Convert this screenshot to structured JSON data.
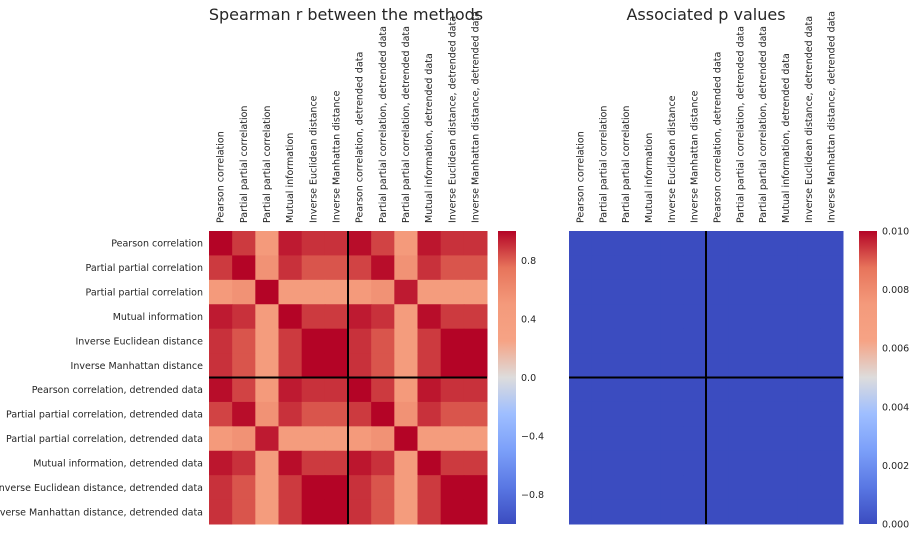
{
  "chart_data": [
    {
      "type": "heatmap",
      "title": "Spearman r between the methods",
      "x_labels": [
        "Pearson correlation",
        "Partial partial correlation",
        "Partial partial correlation",
        "Mutual information",
        "Inverse Euclidean distance",
        "Inverse Manhattan distance",
        "Pearson correlation, detrended data",
        "Partial partial correlation, detrended data",
        "Partial partial correlation, detrended data",
        "Mutual information, detrended data",
        "Inverse Euclidean distance, detrended data",
        "Inverse Manhattan distance, detrended data"
      ],
      "y_labels": [
        "Pearson correlation",
        "Partial partial correlation",
        "Partial partial correlation",
        "Mutual information",
        "Inverse Euclidean distance",
        "Inverse Manhattan distance",
        "Pearson correlation, detrended data",
        "Partial partial correlation, detrended data",
        "Partial partial correlation, detrended data",
        "Mutual information, detrended data",
        "Inverse Euclidean distance, detrended data",
        "Inverse Manhattan distance, detrended data"
      ],
      "values": [
        [
          1.0,
          0.88,
          0.5,
          0.95,
          0.9,
          0.9,
          0.98,
          0.86,
          0.5,
          0.96,
          0.9,
          0.9
        ],
        [
          0.88,
          1.0,
          0.55,
          0.9,
          0.82,
          0.82,
          0.86,
          0.98,
          0.55,
          0.9,
          0.82,
          0.82
        ],
        [
          0.5,
          0.55,
          1.0,
          0.45,
          0.45,
          0.45,
          0.5,
          0.55,
          0.95,
          0.45,
          0.45,
          0.45
        ],
        [
          0.95,
          0.9,
          0.45,
          1.0,
          0.88,
          0.88,
          0.95,
          0.9,
          0.45,
          0.98,
          0.88,
          0.88
        ],
        [
          0.9,
          0.82,
          0.45,
          0.88,
          1.0,
          1.0,
          0.9,
          0.82,
          0.45,
          0.88,
          1.0,
          1.0
        ],
        [
          0.9,
          0.82,
          0.45,
          0.88,
          1.0,
          1.0,
          0.9,
          0.82,
          0.45,
          0.88,
          1.0,
          1.0
        ],
        [
          0.98,
          0.86,
          0.5,
          0.95,
          0.9,
          0.9,
          1.0,
          0.88,
          0.5,
          0.96,
          0.9,
          0.9
        ],
        [
          0.86,
          0.98,
          0.55,
          0.9,
          0.82,
          0.82,
          0.88,
          1.0,
          0.55,
          0.9,
          0.82,
          0.82
        ],
        [
          0.5,
          0.55,
          0.95,
          0.45,
          0.45,
          0.45,
          0.5,
          0.55,
          1.0,
          0.45,
          0.45,
          0.45
        ],
        [
          0.96,
          0.9,
          0.45,
          0.98,
          0.88,
          0.88,
          0.96,
          0.9,
          0.45,
          1.0,
          0.88,
          0.88
        ],
        [
          0.9,
          0.82,
          0.45,
          0.88,
          1.0,
          1.0,
          0.9,
          0.82,
          0.45,
          0.88,
          1.0,
          1.0
        ],
        [
          0.9,
          0.82,
          0.45,
          0.88,
          1.0,
          1.0,
          0.9,
          0.82,
          0.45,
          0.88,
          1.0,
          1.0
        ]
      ],
      "colormap": "coolwarm",
      "vmin": -1.0,
      "vmax": 1.0,
      "colorbar_ticks": [
        0.8,
        0.4,
        0.0,
        -0.4,
        -0.8
      ],
      "colorbar_tick_labels": [
        "0.8",
        "0.4",
        "0.0",
        "−0.4",
        "−0.8"
      ],
      "separator_after_index": 6
    },
    {
      "type": "heatmap",
      "title": "Associated p values",
      "x_labels": [
        "Pearson correlation",
        "Partial partial correlation",
        "Partial partial correlation",
        "Mutual information",
        "Inverse Euclidean distance",
        "Inverse Manhattan distance",
        "Pearson correlation, detrended data",
        "Partial partial correlation, detrended data",
        "Partial partial correlation, detrended data",
        "Mutual information, detrended data",
        "Inverse Euclidean distance, detrended data",
        "Inverse Manhattan distance, detrended data"
      ],
      "values": [
        [
          0,
          0,
          0,
          0,
          0,
          0,
          0,
          0,
          0,
          0,
          0,
          0
        ],
        [
          0,
          0,
          0,
          0,
          0,
          0,
          0,
          0,
          0,
          0,
          0,
          0
        ],
        [
          0,
          0,
          0,
          0,
          0,
          0,
          0,
          0,
          0,
          0,
          0,
          0
        ],
        [
          0,
          0,
          0,
          0,
          0,
          0,
          0,
          0,
          0,
          0,
          0,
          0
        ],
        [
          0,
          0,
          0,
          0,
          0,
          0,
          0,
          0,
          0,
          0,
          0,
          0
        ],
        [
          0,
          0,
          0,
          0,
          0,
          0,
          0,
          0,
          0,
          0,
          0,
          0
        ],
        [
          0,
          0,
          0,
          0,
          0,
          0,
          0,
          0,
          0,
          0,
          0,
          0
        ],
        [
          0,
          0,
          0,
          0,
          0,
          0,
          0,
          0,
          0,
          0,
          0,
          0
        ],
        [
          0,
          0,
          0,
          0,
          0,
          0,
          0,
          0,
          0,
          0,
          0,
          0
        ],
        [
          0,
          0,
          0,
          0,
          0,
          0,
          0,
          0,
          0,
          0,
          0,
          0
        ],
        [
          0,
          0,
          0,
          0,
          0,
          0,
          0,
          0,
          0,
          0,
          0,
          0
        ],
        [
          0,
          0,
          0,
          0,
          0,
          0,
          0,
          0,
          0,
          0,
          0,
          0
        ]
      ],
      "colormap": "coolwarm",
      "vmin": 0.0,
      "vmax": 0.01,
      "colorbar_ticks": [
        0.01,
        0.008,
        0.006,
        0.004,
        0.002,
        0.0
      ],
      "colorbar_tick_labels": [
        "0.010",
        "0.008",
        "0.006",
        "0.004",
        "0.002",
        "0.000"
      ],
      "separator_after_index": 6
    }
  ]
}
